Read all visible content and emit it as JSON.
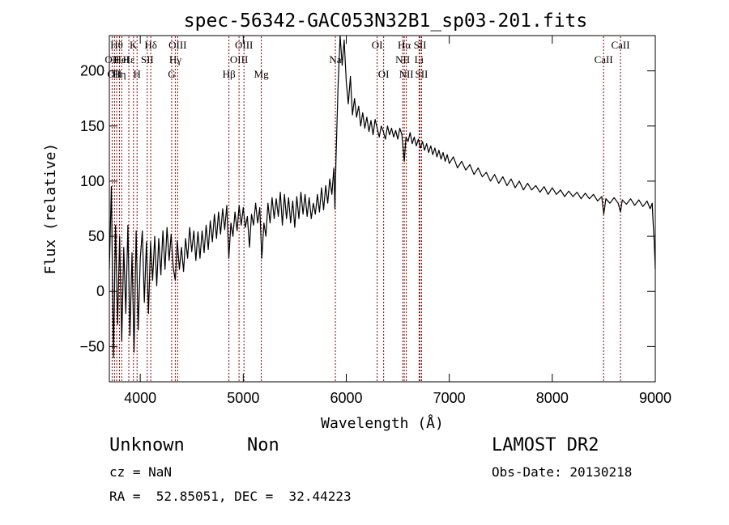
{
  "chart_data": {
    "type": "line",
    "title": "spec-56342-GAC053N32B1_sp03-201.fits",
    "xlabel": "Wavelength (Å)",
    "ylabel": "Flux (relative)",
    "xlim": [
      3700,
      9000
    ],
    "ylim": [
      -82,
      232
    ],
    "x_ticks": [
      4000,
      5000,
      6000,
      7000,
      8000,
      9000
    ],
    "x_tick_labels": [
      "4000",
      "5000",
      "6000",
      "7000",
      "8000",
      "9000"
    ],
    "y_ticks": [
      -50,
      0,
      50,
      100,
      150,
      200
    ],
    "y_tick_labels": [
      "−50",
      "0",
      "50",
      "100",
      "150",
      "200"
    ],
    "grid": false,
    "line_color": "#000000",
    "marker_color": "#8b0000",
    "series": [
      {
        "points": [
          [
            3700,
            20
          ],
          [
            3720,
            95
          ],
          [
            3740,
            -60
          ],
          [
            3760,
            60
          ],
          [
            3780,
            -30
          ],
          [
            3800,
            50
          ],
          [
            3820,
            -45
          ],
          [
            3840,
            40
          ],
          [
            3860,
            -20
          ],
          [
            3880,
            60
          ],
          [
            3900,
            -40
          ],
          [
            3920,
            35
          ],
          [
            3940,
            -55
          ],
          [
            3960,
            55
          ],
          [
            3980,
            -35
          ],
          [
            4000,
            30
          ],
          [
            4020,
            55
          ],
          [
            4040,
            -10
          ],
          [
            4060,
            45
          ],
          [
            4080,
            -20
          ],
          [
            4100,
            45
          ],
          [
            4120,
            10
          ],
          [
            4140,
            50
          ],
          [
            4160,
            5
          ],
          [
            4180,
            48
          ],
          [
            4200,
            15
          ],
          [
            4220,
            55
          ],
          [
            4240,
            20
          ],
          [
            4260,
            58
          ],
          [
            4280,
            28
          ],
          [
            4300,
            52
          ],
          [
            4320,
            22
          ],
          [
            4340,
            10
          ],
          [
            4360,
            46
          ],
          [
            4380,
            20
          ],
          [
            4400,
            40
          ],
          [
            4420,
            18
          ],
          [
            4440,
            48
          ],
          [
            4460,
            30
          ],
          [
            4480,
            58
          ],
          [
            4500,
            36
          ],
          [
            4520,
            55
          ],
          [
            4540,
            28
          ],
          [
            4560,
            54
          ],
          [
            4580,
            30
          ],
          [
            4600,
            55
          ],
          [
            4620,
            35
          ],
          [
            4640,
            60
          ],
          [
            4660,
            38
          ],
          [
            4680,
            64
          ],
          [
            4700,
            45
          ],
          [
            4720,
            70
          ],
          [
            4740,
            48
          ],
          [
            4760,
            72
          ],
          [
            4780,
            52
          ],
          [
            4800,
            75
          ],
          [
            4820,
            56
          ],
          [
            4840,
            78
          ],
          [
            4860,
            30
          ],
          [
            4880,
            62
          ],
          [
            4900,
            50
          ],
          [
            4920,
            72
          ],
          [
            4940,
            55
          ],
          [
            4960,
            78
          ],
          [
            4980,
            60
          ],
          [
            5000,
            76
          ],
          [
            5020,
            58
          ],
          [
            5040,
            68
          ],
          [
            5060,
            40
          ],
          [
            5080,
            70
          ],
          [
            5100,
            60
          ],
          [
            5120,
            80
          ],
          [
            5140,
            62
          ],
          [
            5160,
            76
          ],
          [
            5180,
            30
          ],
          [
            5200,
            62
          ],
          [
            5220,
            50
          ],
          [
            5240,
            80
          ],
          [
            5260,
            62
          ],
          [
            5280,
            85
          ],
          [
            5300,
            66
          ],
          [
            5320,
            84
          ],
          [
            5340,
            68
          ],
          [
            5360,
            90
          ],
          [
            5380,
            60
          ],
          [
            5400,
            88
          ],
          [
            5420,
            66
          ],
          [
            5440,
            85
          ],
          [
            5460,
            62
          ],
          [
            5480,
            82
          ],
          [
            5500,
            58
          ],
          [
            5520,
            86
          ],
          [
            5540,
            66
          ],
          [
            5560,
            90
          ],
          [
            5580,
            70
          ],
          [
            5600,
            88
          ],
          [
            5620,
            68
          ],
          [
            5640,
            85
          ],
          [
            5660,
            66
          ],
          [
            5680,
            80
          ],
          [
            5700,
            70
          ],
          [
            5720,
            88
          ],
          [
            5740,
            72
          ],
          [
            5760,
            94
          ],
          [
            5780,
            74
          ],
          [
            5800,
            96
          ],
          [
            5820,
            80
          ],
          [
            5840,
            102
          ],
          [
            5860,
            88
          ],
          [
            5880,
            112
          ],
          [
            5890,
            75
          ],
          [
            5900,
            120
          ],
          [
            5920,
            185
          ],
          [
            5940,
            232
          ],
          [
            5960,
            205
          ],
          [
            5980,
            228
          ],
          [
            6000,
            190
          ],
          [
            6020,
            170
          ],
          [
            6040,
            195
          ],
          [
            6060,
            160
          ],
          [
            6080,
            175
          ],
          [
            6100,
            158
          ],
          [
            6120,
            168
          ],
          [
            6140,
            150
          ],
          [
            6160,
            162
          ],
          [
            6180,
            148
          ],
          [
            6200,
            158
          ],
          [
            6220,
            145
          ],
          [
            6240,
            155
          ],
          [
            6260,
            142
          ],
          [
            6280,
            156
          ],
          [
            6300,
            148
          ],
          [
            6320,
            140
          ],
          [
            6340,
            150
          ],
          [
            6360,
            145
          ],
          [
            6380,
            138
          ],
          [
            6400,
            150
          ],
          [
            6420,
            142
          ],
          [
            6440,
            148
          ],
          [
            6460,
            140
          ],
          [
            6480,
            146
          ],
          [
            6500,
            138
          ],
          [
            6520,
            148
          ],
          [
            6540,
            142
          ],
          [
            6563,
            118
          ],
          [
            6580,
            140
          ],
          [
            6600,
            136
          ],
          [
            6620,
            144
          ],
          [
            6640,
            134
          ],
          [
            6660,
            140
          ],
          [
            6680,
            132
          ],
          [
            6700,
            138
          ],
          [
            6720,
            130
          ],
          [
            6740,
            136
          ],
          [
            6760,
            128
          ],
          [
            6780,
            134
          ],
          [
            6800,
            126
          ],
          [
            6820,
            132
          ],
          [
            6840,
            124
          ],
          [
            6860,
            130
          ],
          [
            6880,
            122
          ],
          [
            6900,
            128
          ],
          [
            6920,
            120
          ],
          [
            6940,
            126
          ],
          [
            6960,
            118
          ],
          [
            6980,
            124
          ],
          [
            7000,
            116
          ],
          [
            7040,
            122
          ],
          [
            7080,
            112
          ],
          [
            7120,
            118
          ],
          [
            7160,
            110
          ],
          [
            7200,
            115
          ],
          [
            7240,
            106
          ],
          [
            7280,
            112
          ],
          [
            7320,
            104
          ],
          [
            7360,
            108
          ],
          [
            7400,
            100
          ],
          [
            7440,
            106
          ],
          [
            7480,
            98
          ],
          [
            7520,
            104
          ],
          [
            7560,
            96
          ],
          [
            7600,
            102
          ],
          [
            7640,
            94
          ],
          [
            7680,
            100
          ],
          [
            7720,
            92
          ],
          [
            7760,
            98
          ],
          [
            7800,
            92
          ],
          [
            7840,
            96
          ],
          [
            7880,
            90
          ],
          [
            7920,
            95
          ],
          [
            7960,
            88
          ],
          [
            8000,
            94
          ],
          [
            8040,
            88
          ],
          [
            8080,
            92
          ],
          [
            8120,
            86
          ],
          [
            8160,
            91
          ],
          [
            8200,
            86
          ],
          [
            8240,
            90
          ],
          [
            8280,
            84
          ],
          [
            8320,
            89
          ],
          [
            8360,
            84
          ],
          [
            8400,
            88
          ],
          [
            8440,
            82
          ],
          [
            8480,
            86
          ],
          [
            8500,
            70
          ],
          [
            8520,
            84
          ],
          [
            8560,
            80
          ],
          [
            8600,
            85
          ],
          [
            8640,
            80
          ],
          [
            8662,
            72
          ],
          [
            8680,
            83
          ],
          [
            8720,
            79
          ],
          [
            8760,
            84
          ],
          [
            8800,
            78
          ],
          [
            8840,
            83
          ],
          [
            8880,
            77
          ],
          [
            8920,
            82
          ],
          [
            8950,
            75
          ],
          [
            8970,
            80
          ],
          [
            8980,
            60
          ],
          [
            8990,
            45
          ],
          [
            9000,
            20
          ]
        ]
      }
    ],
    "lines": [
      {
        "wl": 3727,
        "labels": [
          {
            "text": "OII",
            "row": 1
          }
        ]
      },
      {
        "wl": 3750,
        "labels": [
          {
            "text": "OII",
            "row": 2
          }
        ]
      },
      {
        "wl": 3771,
        "labels": [
          {
            "text": "Hθ",
            "row": 0
          }
        ]
      },
      {
        "wl": 3798,
        "labels": [
          {
            "text": "Hη",
            "row": 2
          }
        ]
      },
      {
        "wl": 3820,
        "labels": [
          {
            "text": "HeI",
            "row": 1
          }
        ]
      },
      {
        "wl": 3889,
        "labels": [
          {
            "text": "Hε",
            "row": 1
          }
        ]
      },
      {
        "wl": 3934,
        "labels": [
          {
            "text": "K",
            "row": 0
          }
        ]
      },
      {
        "wl": 3969,
        "labels": [
          {
            "text": "H",
            "row": 2
          }
        ]
      },
      {
        "wl": 4068,
        "labels": [
          {
            "text": "SII",
            "row": 1
          }
        ]
      },
      {
        "wl": 4102,
        "labels": [
          {
            "text": "Hδ",
            "row": 0
          }
        ]
      },
      {
        "wl": 4305,
        "labels": [
          {
            "text": "G",
            "row": 2
          }
        ]
      },
      {
        "wl": 4340,
        "labels": [
          {
            "text": "Hγ",
            "row": 1
          }
        ]
      },
      {
        "wl": 4363,
        "labels": [
          {
            "text": "OIII",
            "row": 0
          }
        ]
      },
      {
        "wl": 4861,
        "labels": [
          {
            "text": "Hβ",
            "row": 2
          }
        ]
      },
      {
        "wl": 4959,
        "labels": [
          {
            "text": "OIII",
            "row": 1
          }
        ]
      },
      {
        "wl": 5007,
        "labels": [
          {
            "text": "OIII",
            "row": 0
          }
        ]
      },
      {
        "wl": 5175,
        "labels": [
          {
            "text": "Mg",
            "row": 2
          }
        ]
      },
      {
        "wl": 5894,
        "labels": [
          {
            "text": "Na",
            "row": 1
          }
        ]
      },
      {
        "wl": 6300,
        "labels": [
          {
            "text": "OI",
            "row": 0
          }
        ]
      },
      {
        "wl": 6363,
        "labels": [
          {
            "text": "OI",
            "row": 2
          }
        ]
      },
      {
        "wl": 6548,
        "labels": [
          {
            "text": "NII",
            "row": 1
          }
        ]
      },
      {
        "wl": 6563,
        "labels": [
          {
            "text": "Hα",
            "row": 0
          }
        ]
      },
      {
        "wl": 6583,
        "labels": [
          {
            "text": "NII",
            "row": 2
          }
        ]
      },
      {
        "wl": 6707,
        "labels": [
          {
            "text": "Li",
            "row": 1
          }
        ]
      },
      {
        "wl": 6716,
        "labels": [
          {
            "text": "SII",
            "row": 0
          }
        ]
      },
      {
        "wl": 6731,
        "labels": [
          {
            "text": "SII",
            "row": 2
          }
        ]
      },
      {
        "wl": 8498,
        "labels": [
          {
            "text": "CaII",
            "row": 1
          }
        ]
      },
      {
        "wl": 8662,
        "labels": [
          {
            "text": "CaII",
            "row": 0
          }
        ]
      }
    ]
  },
  "footer": {
    "object_class": "Unknown",
    "object_subclass": "Non",
    "survey": "LAMOST DR2",
    "redshift": "cz = NaN",
    "obs_date": "Obs-Date: 20130218",
    "coordinates": "RA =  52.85051, DEC =  32.44223"
  }
}
